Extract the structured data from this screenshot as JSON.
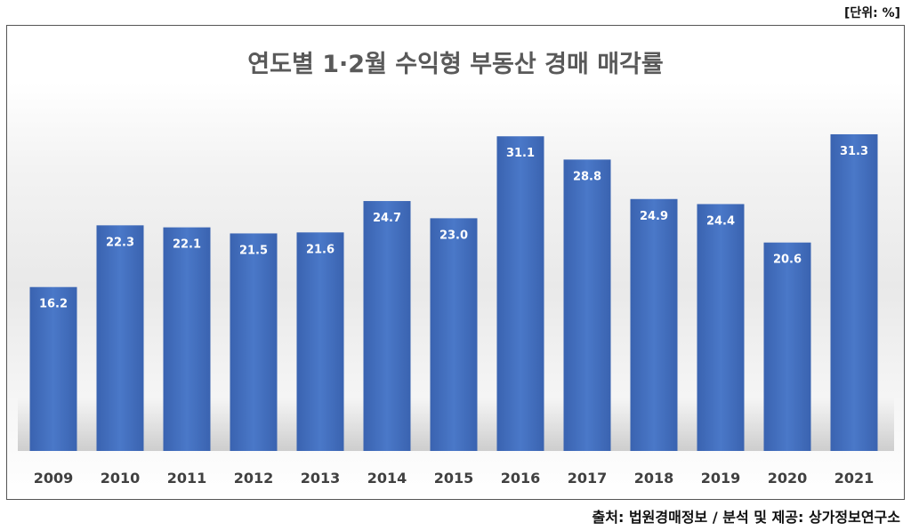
{
  "unit_label": "[단위: %]",
  "source": "출처: 법원경매정보 / 분석 및 제공: 상가정보연구소",
  "chart_data": {
    "type": "bar",
    "title": "연도별 1·2월 수익형 부동산 경매 매각률",
    "xlabel": "",
    "ylabel": "%",
    "ylim": [
      0,
      40
    ],
    "grid": false,
    "categories": [
      "2009",
      "2010",
      "2011",
      "2012",
      "2013",
      "2014",
      "2015",
      "2016",
      "2017",
      "2018",
      "2019",
      "2020",
      "2021"
    ],
    "values": [
      16.2,
      22.3,
      22.1,
      21.5,
      21.6,
      24.7,
      23.0,
      31.1,
      28.8,
      24.9,
      24.4,
      20.6,
      31.3
    ],
    "value_labels": [
      "16.2",
      "22.3",
      "22.1",
      "21.5",
      "21.6",
      "24.7",
      "23.0",
      "31.1",
      "28.8",
      "24.9",
      "24.4",
      "20.6",
      "31.3"
    ],
    "bar_color": "#4472C4"
  }
}
